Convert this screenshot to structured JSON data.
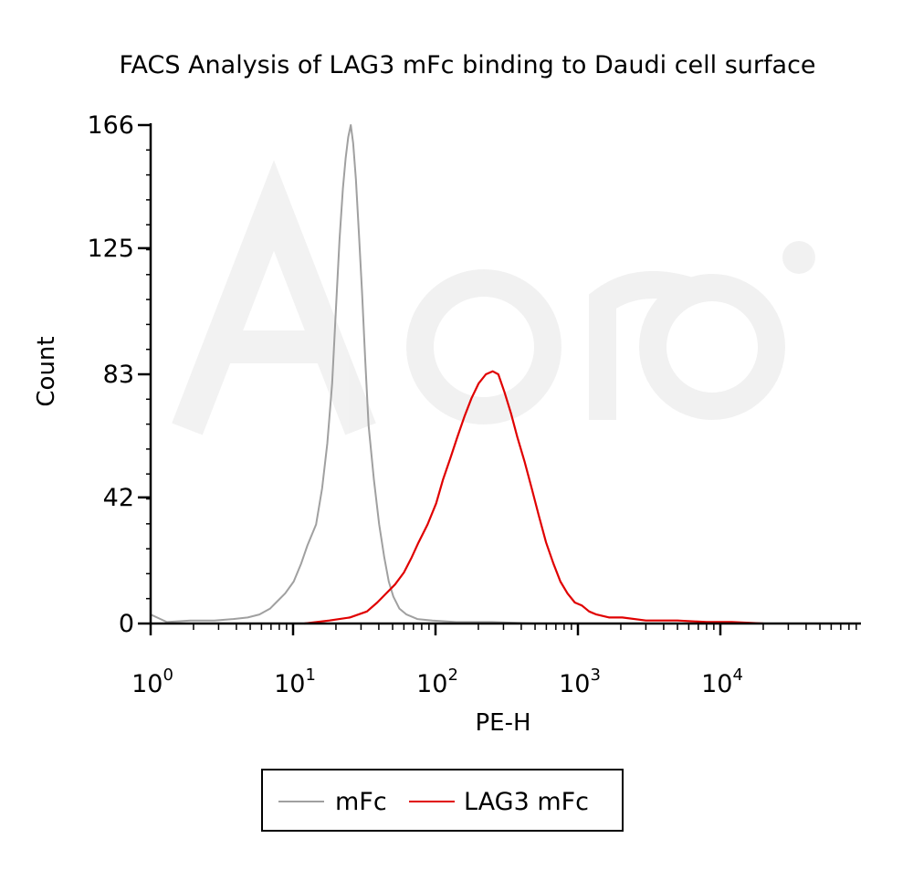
{
  "chart_data": {
    "type": "line",
    "title": "FACS Analysis of LAG3 mFc binding to Daudi cell surface",
    "xlabel": "PE-H",
    "ylabel": "Count",
    "x_scale": "log",
    "xlim": [
      1,
      100000
    ],
    "ylim": [
      0,
      166
    ],
    "x_ticks": [
      {
        "base": "10",
        "exp": "0",
        "value": 1
      },
      {
        "base": "10",
        "exp": "1",
        "value": 10
      },
      {
        "base": "10",
        "exp": "2",
        "value": 100
      },
      {
        "base": "10",
        "exp": "3",
        "value": 1000
      },
      {
        "base": "10",
        "exp": "4",
        "value": 10000
      }
    ],
    "y_ticks": [
      0,
      42,
      83,
      125,
      166
    ],
    "legend": {
      "position": "bottom-center"
    },
    "grid": false,
    "series": [
      {
        "name": "mFc",
        "color": "#a0a0a0",
        "x": [
          1.0,
          1.3,
          1.9,
          2.8,
          3.8,
          4.8,
          5.8,
          6.9,
          7.6,
          8.8,
          10.1,
          11.4,
          12.6,
          14.5,
          16.0,
          17.4,
          18.8,
          20.0,
          21.2,
          22.4,
          23.4,
          24.4,
          25.4,
          26.4,
          27.6,
          29.0,
          30.5,
          32.1,
          33.9,
          36.9,
          40.2,
          43.7,
          47.0,
          50.6,
          55.7,
          62.5,
          74.5,
          95.0,
          140,
          250,
          500,
          1000
        ],
        "y": [
          3,
          0.5,
          1,
          1,
          1.5,
          2,
          3,
          5,
          7,
          10,
          14,
          20,
          26,
          33,
          45,
          60,
          80,
          105,
          128,
          145,
          155,
          162,
          166,
          160,
          148,
          130,
          110,
          88,
          66,
          48,
          33,
          22,
          14,
          9,
          5,
          3,
          1.5,
          1,
          0.5,
          0.5,
          0,
          0
        ]
      },
      {
        "name": "LAG3 mFc",
        "color": "#e00000",
        "x": [
          12,
          18,
          25,
          33,
          39,
          45,
          52,
          60,
          68,
          76,
          88,
          101,
          113,
          127,
          142,
          160,
          179,
          201,
          226,
          252,
          276,
          305,
          339,
          376,
          422,
          474,
          531,
          597,
          672,
          753,
          845,
          951,
          1067,
          1199,
          1348,
          1662,
          2050,
          3000,
          5000,
          8000,
          12000,
          20000
        ],
        "y": [
          0,
          1,
          2,
          4,
          7,
          10,
          13,
          17,
          22,
          27,
          33,
          40,
          48,
          55,
          62,
          69,
          75,
          80,
          83,
          84,
          83,
          77,
          70,
          62,
          54,
          45,
          36,
          27,
          20,
          14,
          10,
          7,
          6,
          4,
          3,
          2,
          2,
          1,
          1,
          0.5,
          0.5,
          0
        ]
      }
    ]
  }
}
